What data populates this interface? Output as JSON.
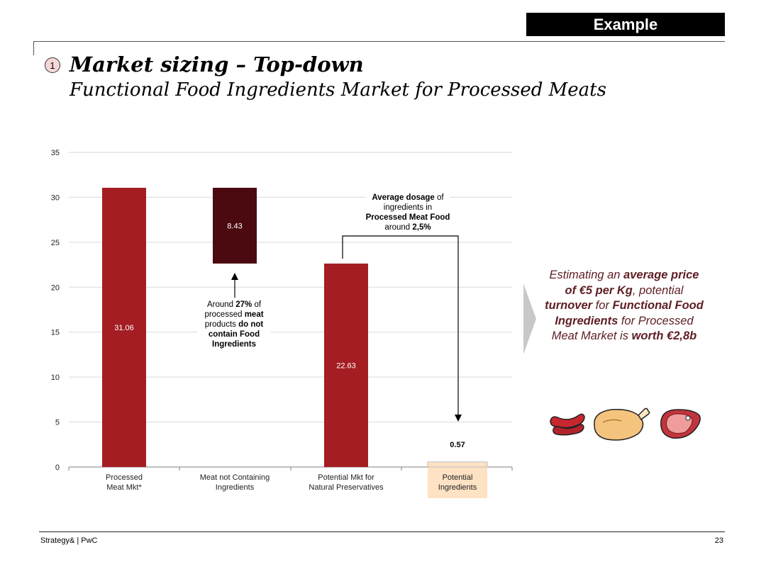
{
  "badge": "Example",
  "step_number": "1",
  "title": "Market sizing – Top-down",
  "subtitle": "Functional Food Ingredients Market for Processed Meats",
  "colors": {
    "bar": "#a41d22",
    "dark_bar": "#4b0a10",
    "highlight_bar": "#fde2c3",
    "grid": "#d9d9d9"
  },
  "chart_data": {
    "type": "bar",
    "subtype": "waterfall",
    "categories": [
      "Processed\nMeat Mkt*",
      "Meat not Containing\nIngredients",
      "Potential Mkt for\nNatural Preservatives",
      "Potential\nIngredients"
    ],
    "values": [
      31.06,
      8.43,
      22.63,
      0.57
    ],
    "value_labels": [
      "31.06",
      "8.43",
      "22.63",
      "0.57"
    ],
    "bases": [
      0,
      22.63,
      0,
      0
    ],
    "bar_roles": [
      "total",
      "decrease",
      "total",
      "result"
    ],
    "y_ticks": [
      0,
      5,
      10,
      15,
      20,
      25,
      30,
      35
    ],
    "ylim": [
      0,
      35
    ],
    "grid": true
  },
  "annotations": {
    "dosage_parts": [
      {
        "text": "Average dosage",
        "bold": true
      },
      {
        "text": " of ingredients in ",
        "bold": false
      },
      {
        "text": "Processed Meat Food",
        "bold": true
      },
      {
        "text": " around ",
        "bold": false
      },
      {
        "text": "2,5%",
        "bold": true
      }
    ],
    "share_parts": [
      {
        "text": "Around ",
        "bold": false
      },
      {
        "text": "27%",
        "bold": true
      },
      {
        "text": " of processed ",
        "bold": false
      },
      {
        "text": "meat",
        "bold": true
      },
      {
        "text": " products ",
        "bold": false
      },
      {
        "text": "do not",
        "bold": true
      },
      {
        "text": " ",
        "bold": false
      },
      {
        "text": "contain Food Ingredients",
        "bold": true
      }
    ]
  },
  "conclusion_parts": [
    {
      "text": "Estimating an ",
      "bold": false
    },
    {
      "text": "average price of €5 per Kg",
      "bold": true
    },
    {
      "text": ", potential ",
      "bold": false
    },
    {
      "text": "turnover",
      "bold": true
    },
    {
      "text": " for ",
      "bold": false
    },
    {
      "text": "Functional Food Ingredients",
      "bold": true
    },
    {
      "text": " for Processed Meat Market is ",
      "bold": false
    },
    {
      "text": "worth €2,8b",
      "bold": true
    }
  ],
  "icons": [
    "sausage-icon",
    "roast-chicken-icon",
    "ham-steak-icon"
  ],
  "footer": {
    "left": "Strategy& | PwC",
    "page": "23"
  }
}
